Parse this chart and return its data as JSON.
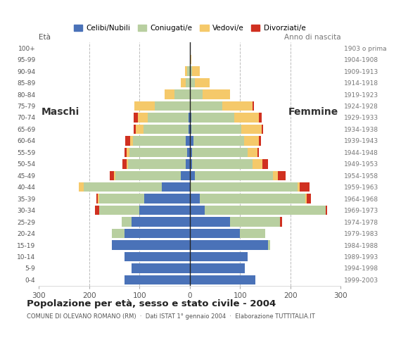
{
  "age_groups": [
    "0-4",
    "5-9",
    "10-14",
    "15-19",
    "20-24",
    "25-29",
    "30-34",
    "35-39",
    "40-44",
    "45-49",
    "50-54",
    "55-59",
    "60-64",
    "65-69",
    "70-74",
    "75-79",
    "80-84",
    "85-89",
    "90-94",
    "95-99",
    "100+"
  ],
  "birth_years": [
    "1999-2003",
    "1994-1998",
    "1989-1993",
    "1984-1988",
    "1979-1983",
    "1974-1978",
    "1969-1973",
    "1964-1968",
    "1959-1963",
    "1954-1958",
    "1949-1953",
    "1944-1948",
    "1939-1943",
    "1934-1938",
    "1929-1933",
    "1924-1928",
    "1919-1923",
    "1914-1918",
    "1909-1913",
    "1904-1908",
    "1903 o prima"
  ],
  "males": {
    "celibe": [
      130,
      115,
      130,
      155,
      130,
      115,
      100,
      90,
      55,
      18,
      8,
      5,
      8,
      2,
      3,
      0,
      0,
      0,
      0,
      0,
      0
    ],
    "coniugato": [
      0,
      0,
      0,
      0,
      25,
      20,
      80,
      90,
      155,
      130,
      115,
      115,
      105,
      90,
      80,
      70,
      30,
      8,
      5,
      0,
      0
    ],
    "vedovo": [
      0,
      0,
      0,
      0,
      0,
      0,
      0,
      3,
      10,
      3,
      3,
      5,
      5,
      15,
      20,
      40,
      20,
      10,
      5,
      0,
      0
    ],
    "divorziato": [
      0,
      0,
      0,
      0,
      0,
      0,
      8,
      3,
      0,
      8,
      8,
      5,
      10,
      5,
      8,
      0,
      0,
      0,
      0,
      0,
      0
    ]
  },
  "females": {
    "nubile": [
      130,
      110,
      115,
      155,
      100,
      80,
      30,
      20,
      0,
      10,
      5,
      5,
      8,
      3,
      3,
      0,
      0,
      0,
      0,
      0,
      0
    ],
    "coniugata": [
      0,
      0,
      0,
      5,
      50,
      100,
      240,
      210,
      215,
      155,
      120,
      110,
      100,
      100,
      85,
      65,
      25,
      10,
      5,
      0,
      0
    ],
    "vedova": [
      0,
      0,
      0,
      0,
      0,
      0,
      0,
      3,
      3,
      10,
      20,
      20,
      30,
      40,
      50,
      60,
      55,
      30,
      15,
      3,
      0
    ],
    "divorziata": [
      0,
      0,
      0,
      0,
      0,
      3,
      3,
      8,
      20,
      15,
      10,
      3,
      3,
      3,
      5,
      3,
      0,
      0,
      0,
      0,
      0
    ]
  },
  "colors": {
    "celibe_nubile": "#4a72b8",
    "coniugato": "#b8cfa0",
    "vedovo": "#f5c96a",
    "divorziato": "#d03020"
  },
  "xlim": 300,
  "title": "Popolazione per età, sesso e stato civile - 2004",
  "subtitle": "COMUNE DI OLEVANO ROMANO (RM)  ·  Dati ISTAT 1° gennaio 2004  ·  Elaborazione TUTTITALIA.IT",
  "xlabel_left": "Maschi",
  "xlabel_right": "Femmine",
  "ylabel_age": "Età",
  "ylabel_birth": "Anno di nascita",
  "legend_labels": [
    "Celibi/Nubili",
    "Coniugati/e",
    "Vedovi/e",
    "Divorziati/e"
  ],
  "background_color": "#ffffff"
}
